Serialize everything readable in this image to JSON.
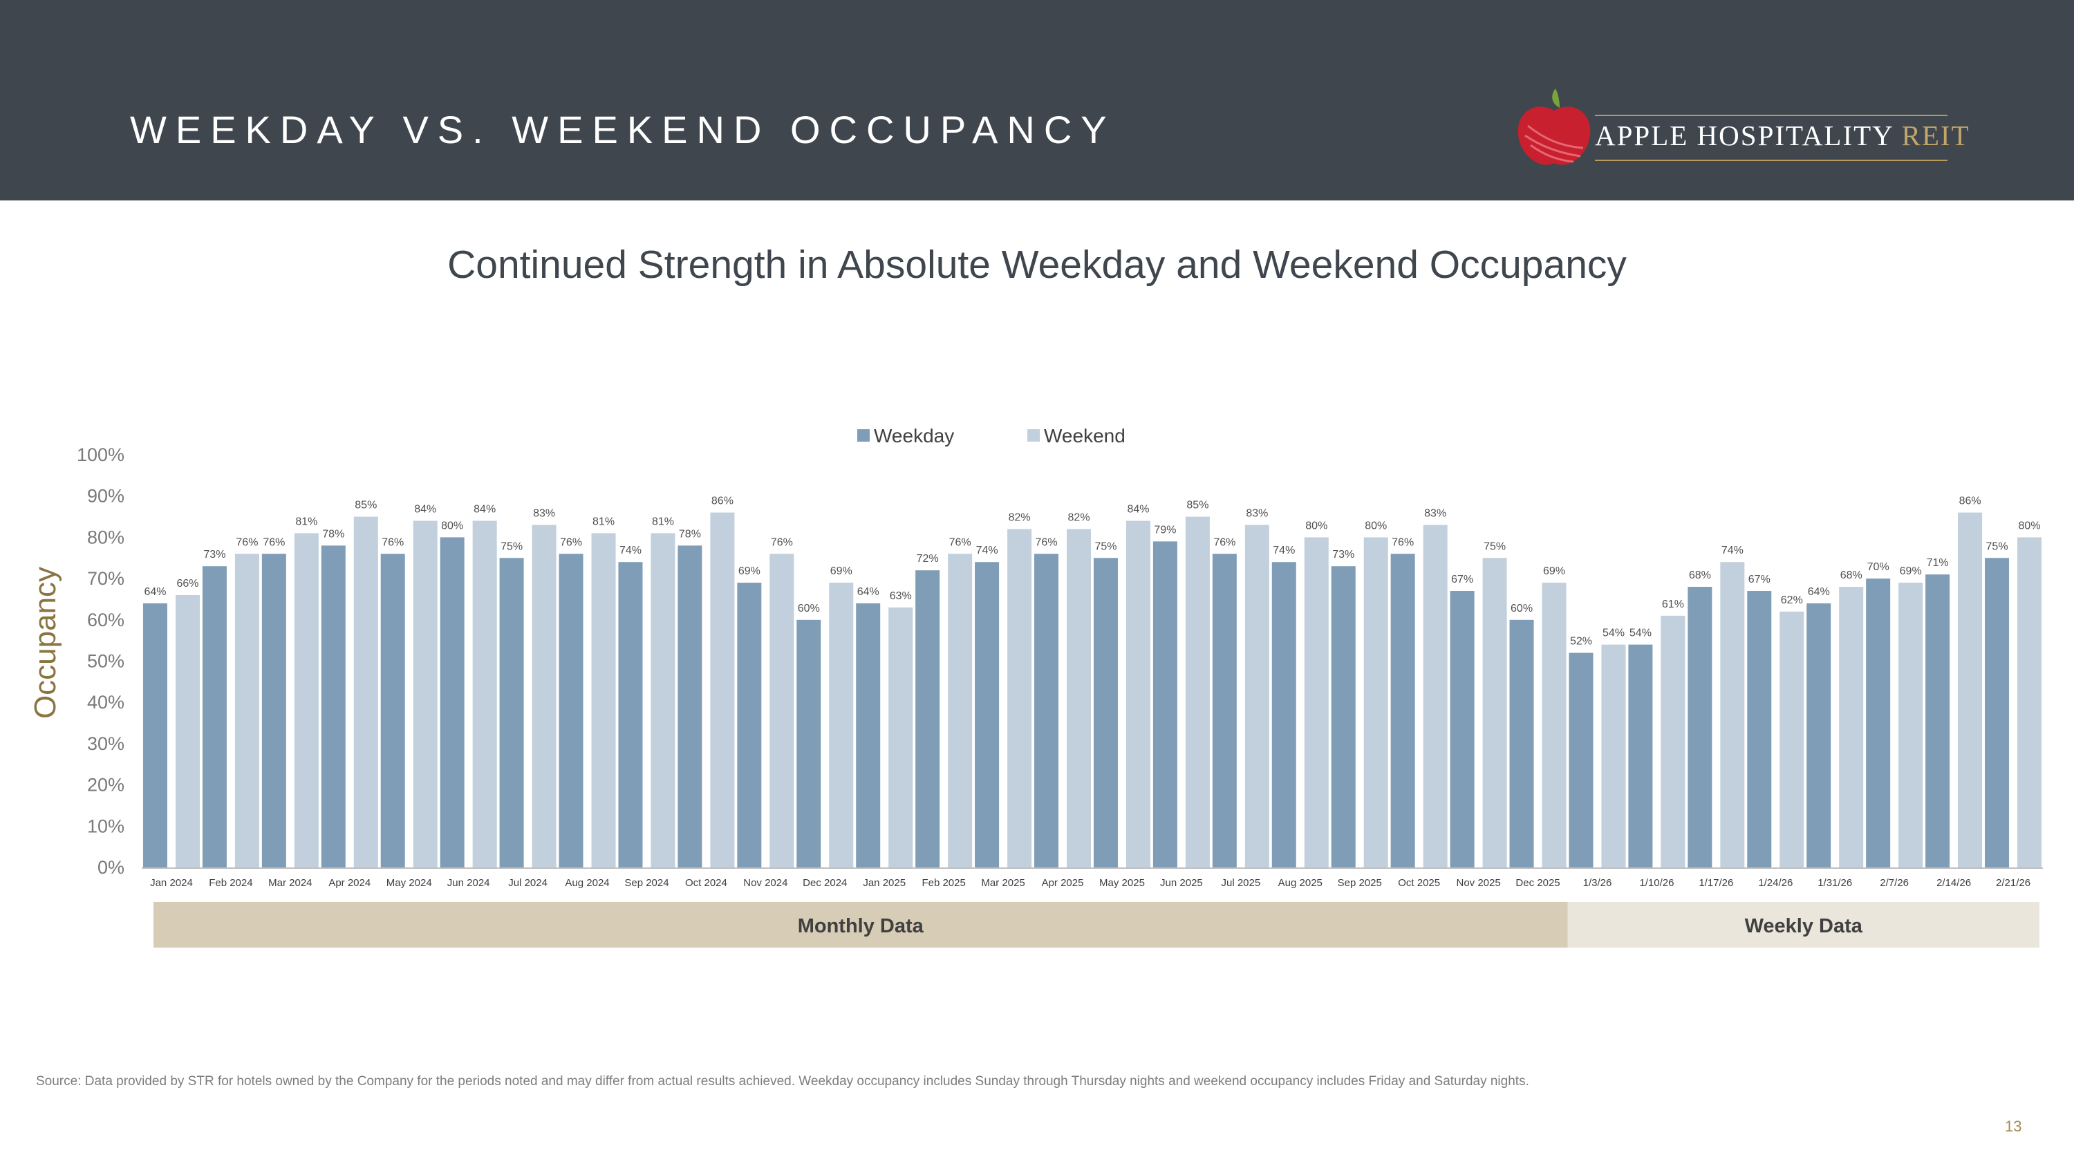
{
  "header": {
    "title": "WEEKDAY VS. WEEKEND OCCUPANCY"
  },
  "logo": {
    "line1": "APPLE HOSPITALITY ",
    "line2": "REIT"
  },
  "colors": {
    "weekday": "#7f9db6",
    "weekend": "#c1d0dc",
    "monthly_band": "#d7ccb5",
    "weekly_band": "#ebe6dc",
    "header_bg": "#3f464e",
    "ylabel": "#8a7440"
  },
  "chart_data": {
    "type": "bar",
    "title": "Continued Strength in Absolute Weekday and Weekend Occupancy",
    "ylabel": "Occupancy",
    "xlabel": "",
    "ylim": [
      0,
      100
    ],
    "yticks": [
      "0%",
      "10%",
      "20%",
      "30%",
      "40%",
      "50%",
      "60%",
      "70%",
      "80%",
      "90%",
      "100%"
    ],
    "legend_position": "top-center",
    "categories": [
      "Jan 2024",
      "Feb 2024",
      "Mar 2024",
      "Apr 2024",
      "May 2024",
      "Jun 2024",
      "Jul 2024",
      "Aug 2024",
      "Sep 2024",
      "Oct 2024",
      "Nov 2024",
      "Dec 2024",
      "Jan 2025",
      "Feb 2025",
      "Mar 2025",
      "Apr 2025",
      "May 2025",
      "Jun 2025",
      "Jul 2025",
      "Aug 2025",
      "Sep 2025",
      "Oct 2025",
      "Nov 2025",
      "Dec 2025",
      "1/3/26",
      "1/10/26",
      "1/17/26",
      "1/24/26",
      "1/31/26",
      "2/7/26",
      "2/14/26",
      "2/21/26"
    ],
    "series": [
      {
        "name": "Weekday",
        "values": [
          64,
          73,
          76,
          78,
          76,
          80,
          75,
          76,
          74,
          78,
          69,
          60,
          64,
          72,
          74,
          76,
          75,
          79,
          76,
          74,
          73,
          76,
          67,
          60,
          52,
          54,
          68,
          67,
          64,
          70,
          71,
          75
        ]
      },
      {
        "name": "Weekend",
        "values": [
          66,
          76,
          81,
          85,
          84,
          84,
          83,
          81,
          81,
          86,
          76,
          69,
          63,
          76,
          82,
          82,
          84,
          85,
          83,
          80,
          80,
          83,
          75,
          69,
          54,
          61,
          74,
          62,
          68,
          69,
          86,
          80
        ]
      }
    ],
    "groups": [
      {
        "label": "Monthly Data",
        "count": 24
      },
      {
        "label": "Weekly Data",
        "count": 8
      }
    ]
  },
  "footer": {
    "source": "Source:  Data provided by STR for hotels owned by the Company for the periods noted and may differ from actual results achieved. Weekday occupancy includes Sunday through Thursday nights and weekend occupancy includes Friday and Saturday nights.",
    "page_number": "13"
  }
}
